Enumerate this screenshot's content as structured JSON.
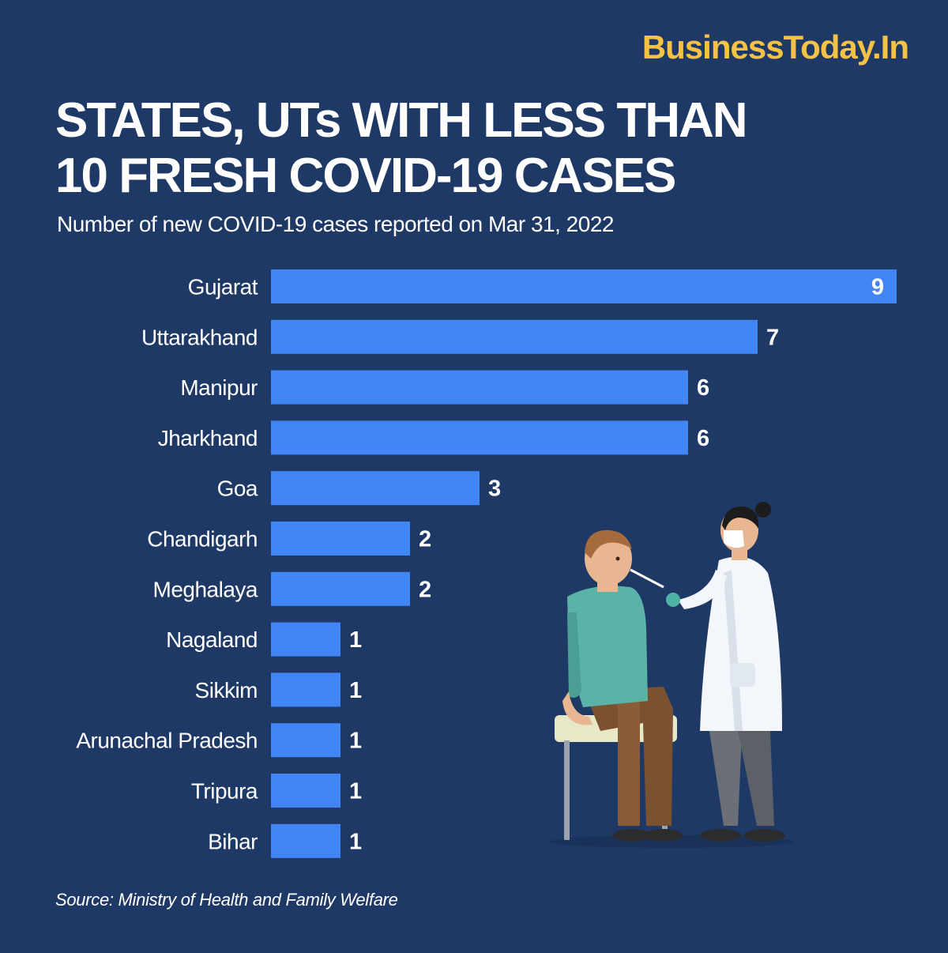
{
  "brand": "BusinessToday.In",
  "title_line1": "STATES, UTs WITH LESS THAN",
  "title_line2": "10 FRESH COVID-19 CASES",
  "subtitle": "Number of new COVID-19 cases reported on Mar 31, 2022",
  "source": "Source: Ministry of Health and Family Welfare",
  "colors": {
    "background": "#1f3966",
    "bar": "#4285f4",
    "brand": "#f6c245"
  },
  "illustration": "healthcare-worker-swab-test-icon",
  "chart_data": {
    "type": "bar",
    "orientation": "horizontal",
    "categories": [
      "Gujarat",
      "Uttarakhand",
      "Manipur",
      "Jharkhand",
      "Goa",
      "Chandigarh",
      "Meghalaya",
      "Nagaland",
      "Sikkim",
      "Arunachal Pradesh",
      "Tripura",
      "Bihar"
    ],
    "values": [
      9,
      7,
      6,
      6,
      3,
      2,
      2,
      1,
      1,
      1,
      1,
      1
    ],
    "title": "STATES, UTs WITH LESS THAN 10 FRESH COVID-19 CASES",
    "subtitle": "Number of new COVID-19 cases reported on Mar 31, 2022",
    "xlim": [
      0,
      9
    ],
    "grid": false,
    "legend": "none",
    "data_labels": true
  }
}
